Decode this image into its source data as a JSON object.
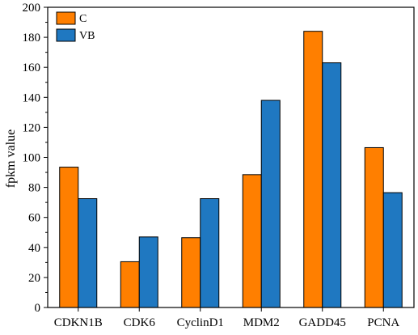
{
  "chart_data": {
    "type": "bar",
    "title": "",
    "xlabel": "",
    "ylabel": "fpkm value",
    "ylim": [
      0,
      200
    ],
    "yticks": [
      "0",
      "20",
      "40",
      "60",
      "80",
      "100",
      "120",
      "140",
      "160",
      "180",
      "200"
    ],
    "categories": [
      "CDKN1B",
      "CDK6",
      "CyclinD1",
      "MDM2",
      "GADD45",
      "PCNA"
    ],
    "series": [
      {
        "name": "C",
        "color": "#ff7f00",
        "values": [
          93.5,
          30.5,
          46.5,
          88.5,
          184,
          106.5
        ]
      },
      {
        "name": "VB",
        "color": "#1f78c1",
        "values": [
          72.5,
          47,
          72.5,
          138,
          163,
          76.5
        ]
      }
    ],
    "legend": "top-left",
    "grid": false
  }
}
